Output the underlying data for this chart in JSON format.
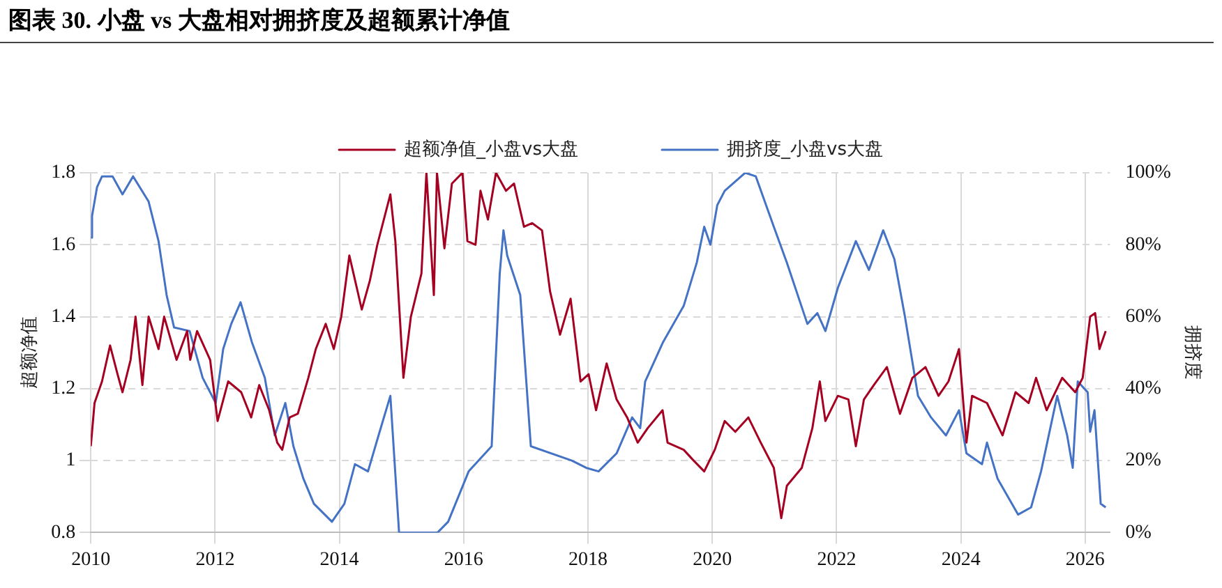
{
  "chart_data": {
    "type": "line",
    "title": "图表 30. 小盘 vs 大盘相对拥挤度及超额累计净值",
    "ylabel": "超额净值",
    "y2label": "拥挤度",
    "xlim": [
      2010,
      2026.4
    ],
    "xticks": [
      2010,
      2012,
      2014,
      2016,
      2018,
      2020,
      2022,
      2024,
      2026
    ],
    "ylim": [
      0.8,
      1.8
    ],
    "yticks": [
      0.8,
      1,
      1.2,
      1.4,
      1.6,
      1.8
    ],
    "y2lim": [
      0,
      100
    ],
    "y2ticks": [
      {
        "value": 0,
        "label": "0%"
      },
      {
        "value": 20,
        "label": "20%"
      },
      {
        "value": 40,
        "label": "40%"
      },
      {
        "value": 60,
        "label": "60%"
      },
      {
        "value": 80,
        "label": "80%"
      },
      {
        "value": 100,
        "label": "100%"
      }
    ],
    "grid": true,
    "legend": "top",
    "marker": "none",
    "line_style": "solid",
    "series": [
      {
        "name": "超额净值_小盘vs大盘",
        "color": "#a50021",
        "x": [
          2010,
          2010.06,
          2010.18,
          2010.31,
          2010.43,
          2010.51,
          2010.64,
          2010.72,
          2010.83,
          2010.93,
          2011.09,
          2011.18,
          2011.38,
          2011.55,
          2011.6,
          2011.71,
          2011.92,
          2012.04,
          2012.21,
          2012.42,
          2012.58,
          2012.71,
          2012.87,
          2013,
          2013.08,
          2013.2,
          2013.33,
          2013.5,
          2013.62,
          2013.78,
          2013.91,
          2014.03,
          2014.16,
          2014.28,
          2014.36,
          2014.49,
          2014.61,
          2014.82,
          2014.9,
          2015.03,
          2015.15,
          2015.32,
          2015.4,
          2015.52,
          2015.57,
          2015.69,
          2015.81,
          2015.98,
          2016.06,
          2016.19,
          2016.27,
          2016.39,
          2016.52,
          2016.68,
          2016.81,
          2016.97,
          2017.1,
          2017.26,
          2017.39,
          2017.55,
          2017.72,
          2017.88,
          2018.01,
          2018.13,
          2018.3,
          2018.46,
          2018.63,
          2018.8,
          2018.96,
          2019.2,
          2019.28,
          2019.54,
          2019.7,
          2019.87,
          2020.04,
          2020.2,
          2020.37,
          2020.58,
          2020.78,
          2020.99,
          2021.11,
          2021.2,
          2021.44,
          2021.61,
          2021.73,
          2021.82,
          2022.02,
          2022.19,
          2022.31,
          2022.44,
          2022.6,
          2022.81,
          2023.02,
          2023.22,
          2023.43,
          2023.64,
          2023.8,
          2023.97,
          2024.09,
          2024.18,
          2024.42,
          2024.67,
          2024.88,
          2025.09,
          2025.21,
          2025.38,
          2025.63,
          2025.84,
          2025.96,
          2026.08,
          2026.16,
          2026.23,
          2026.33
        ],
        "values": [
          1.04,
          1.16,
          1.22,
          1.32,
          1.24,
          1.19,
          1.28,
          1.4,
          1.21,
          1.4,
          1.31,
          1.4,
          1.28,
          1.36,
          1.28,
          1.36,
          1.28,
          1.11,
          1.22,
          1.19,
          1.12,
          1.21,
          1.14,
          1.05,
          1.03,
          1.12,
          1.13,
          1.23,
          1.31,
          1.38,
          1.31,
          1.4,
          1.57,
          1.48,
          1.42,
          1.5,
          1.6,
          1.74,
          1.61,
          1.23,
          1.4,
          1.52,
          1.8,
          1.46,
          1.8,
          1.59,
          1.77,
          1.8,
          1.61,
          1.6,
          1.75,
          1.67,
          1.8,
          1.75,
          1.77,
          1.65,
          1.66,
          1.64,
          1.47,
          1.35,
          1.45,
          1.22,
          1.24,
          1.14,
          1.27,
          1.17,
          1.12,
          1.05,
          1.09,
          1.14,
          1.05,
          1.03,
          1,
          0.97,
          1.03,
          1.11,
          1.08,
          1.12,
          1.05,
          0.98,
          0.84,
          0.93,
          0.98,
          1.09,
          1.22,
          1.11,
          1.18,
          1.17,
          1.04,
          1.17,
          1.21,
          1.26,
          1.13,
          1.23,
          1.26,
          1.18,
          1.22,
          1.31,
          1.05,
          1.18,
          1.16,
          1.07,
          1.19,
          1.16,
          1.23,
          1.14,
          1.23,
          1.19,
          1.23,
          1.4,
          1.41,
          1.31,
          1.36
        ]
      },
      {
        "name": "拥挤度_小盘vs大盘",
        "color": "#4472c4",
        "axis": "y2",
        "x": [
          2010,
          2010.02,
          2010.1,
          2010.18,
          2010.35,
          2010.51,
          2010.68,
          2010.93,
          2011.09,
          2011.22,
          2011.34,
          2011.59,
          2011.8,
          2012.01,
          2012.13,
          2012.26,
          2012.41,
          2012.59,
          2012.8,
          2012.96,
          2013.13,
          2013.26,
          2013.42,
          2013.59,
          2013.88,
          2014.08,
          2014.25,
          2014.46,
          2014.63,
          2014.82,
          2014.96,
          2015.58,
          2015.75,
          2016.08,
          2016.45,
          2016.58,
          2016.64,
          2016.7,
          2016.91,
          2017.08,
          2017.74,
          2017.97,
          2018.17,
          2018.46,
          2018.71,
          2018.84,
          2018.92,
          2019.21,
          2019.54,
          2019.75,
          2019.87,
          2019.97,
          2020.08,
          2020.2,
          2020.53,
          2020.7,
          2020.99,
          2021.2,
          2021.53,
          2021.69,
          2021.82,
          2022.02,
          2022.31,
          2022.52,
          2022.75,
          2022.93,
          2023.1,
          2023.31,
          2023.52,
          2023.76,
          2023.97,
          2024.09,
          2024.34,
          2024.42,
          2024.59,
          2024.92,
          2025.13,
          2025.29,
          2025.55,
          2025.71,
          2025.8,
          2025.88,
          2026.04,
          2026.08,
          2026.15,
          2026.25,
          2026.33
        ],
        "values": [
          82,
          88,
          96,
          99,
          99,
          94,
          99,
          92,
          81,
          66,
          57,
          56,
          43,
          36,
          51,
          58,
          64,
          53,
          43,
          27,
          36,
          24,
          15,
          8,
          3,
          8,
          19,
          17,
          27,
          38,
          0,
          0,
          3,
          17,
          24,
          72,
          84,
          77,
          66,
          24,
          20,
          18,
          17,
          22,
          32,
          29,
          42,
          53,
          63,
          75,
          85,
          80,
          91,
          95,
          100,
          99,
          85,
          75,
          58,
          61,
          56,
          68,
          81,
          73,
          84,
          76,
          60,
          38,
          32,
          27,
          34,
          22,
          19,
          25,
          15,
          5,
          7,
          17,
          38,
          27,
          18,
          42,
          39,
          28,
          34,
          8,
          7
        ]
      }
    ]
  }
}
